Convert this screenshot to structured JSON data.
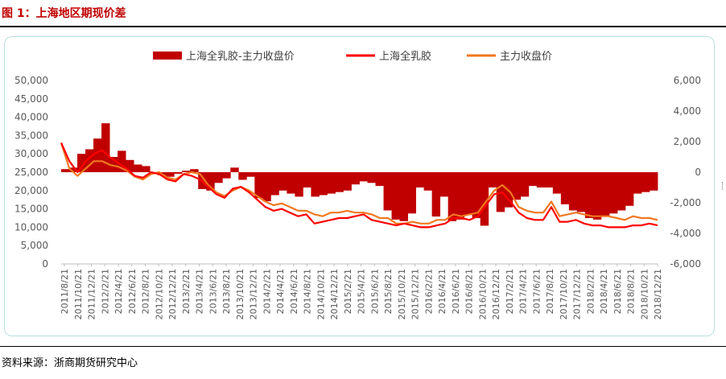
{
  "figure": {
    "title": "图 1：上海地区期现价差"
  },
  "source": {
    "text": "资料来源：浙商期货研究中心"
  },
  "chart_data": {
    "type": "bar",
    "legend": {
      "placement": "top",
      "items": [
        {
          "label": "上海全乳胶-主力收盘价",
          "kind": "bar",
          "color": "#c00000"
        },
        {
          "label": "上海全乳胶",
          "kind": "line",
          "color": "#ff0000"
        },
        {
          "label": "主力收盘价",
          "kind": "line",
          "color": "#f07820"
        }
      ]
    },
    "left_axis": {
      "ylim": [
        0,
        50000
      ],
      "ticks": [
        "0",
        "5,000",
        "10,000",
        "15,000",
        "20,000",
        "25,000",
        "30,000",
        "35,000",
        "40,000",
        "45,000",
        "50,000"
      ]
    },
    "right_axis": {
      "ylim": [
        -6000,
        6000
      ],
      "ticks": [
        "-6,000",
        "-4,000",
        "-2,000",
        "0",
        "2,000",
        "4,000",
        "6,000"
      ]
    },
    "x_tick_labels": [
      "2011/8/21",
      "2011/10/21",
      "2011/12/21",
      "2012/2/21",
      "2012/4/21",
      "2012/6/21",
      "2012/8/21",
      "2012/10/21",
      "2012/12/21",
      "2013/2/21",
      "2013/4/21",
      "2013/6/21",
      "2013/8/21",
      "2013/10/21",
      "2013/12/21",
      "2014/2/21",
      "2014/4/21",
      "2014/6/21",
      "2014/8/21",
      "2014/10/21",
      "2014/12/21",
      "2015/2/21",
      "2015/4/21",
      "2015/6/21",
      "2015/8/21",
      "2015/10/21",
      "2015/12/21",
      "2016/2/21",
      "2016/4/21",
      "2016/6/21",
      "2016/8/21",
      "2016/10/21",
      "2016/12/21",
      "2017/2/21",
      "2017/4/21",
      "2017/6/21",
      "2017/8/21",
      "2017/10/21",
      "2017/12/21",
      "2018/2/21",
      "2018/4/21",
      "2018/6/21",
      "2018/8/21",
      "2018/10/21",
      "2018/12/21"
    ],
    "series": [
      {
        "name": "上海全乳胶-主力收盘价",
        "axis": "right",
        "type": "bar",
        "values": [
          200,
          300,
          1200,
          1500,
          2200,
          3200,
          1000,
          1400,
          800,
          500,
          400,
          0,
          -200,
          -300,
          -100,
          100,
          200,
          -1100,
          -1200,
          -700,
          -400,
          300,
          -500,
          -300,
          -1700,
          -1900,
          -1500,
          -1200,
          -1400,
          -1600,
          -1000,
          -1600,
          -1500,
          -1400,
          -1300,
          -1200,
          -800,
          -600,
          -700,
          -900,
          -2500,
          -3100,
          -3200,
          -2700,
          -1000,
          -1200,
          -2900,
          -1600,
          -3200,
          -3100,
          -2800,
          -3000,
          -3500,
          -1000,
          -2600,
          -2300,
          -1800,
          -1600,
          -900,
          -1000,
          -1000,
          -1400,
          -2100,
          -2500,
          -2600,
          -3000,
          -3100,
          -2900,
          -2700,
          -2500,
          -2200,
          -1400,
          -1300,
          -1200
        ]
      },
      {
        "name": "上海全乳胶",
        "axis": "left",
        "type": "line",
        "values": [
          33000,
          28000,
          25000,
          28000,
          30000,
          31000,
          29000,
          27500,
          26000,
          24000,
          23500,
          25000,
          24500,
          23000,
          22500,
          24500,
          24000,
          23000,
          21000,
          19000,
          18000,
          20500,
          21000,
          19500,
          17500,
          15500,
          14500,
          15000,
          14000,
          13000,
          13500,
          11000,
          11500,
          12000,
          12500,
          12500,
          13000,
          13500,
          12000,
          11500,
          11000,
          10500,
          11000,
          10500,
          10000,
          10000,
          10500,
          11000,
          12500,
          12500,
          12000,
          13000,
          16000,
          19000,
          19500,
          17000,
          14000,
          12500,
          12000,
          12000,
          15500,
          11500,
          11500,
          12000,
          11000,
          10500,
          10500,
          10000,
          10000,
          10000,
          10500,
          10500,
          11000,
          10500
        ]
      },
      {
        "name": "主力收盘价",
        "axis": "left",
        "type": "line",
        "values": [
          33000,
          26000,
          24000,
          26000,
          28000,
          28000,
          27000,
          26500,
          25500,
          23800,
          23000,
          24500,
          25000,
          23500,
          23000,
          24500,
          25000,
          24500,
          21500,
          19500,
          18500,
          20000,
          21000,
          20000,
          18500,
          17000,
          16000,
          16500,
          15500,
          14500,
          14500,
          13500,
          13000,
          14000,
          14000,
          14500,
          14000,
          14000,
          13500,
          12500,
          12500,
          11000,
          11000,
          11500,
          11000,
          11000,
          12000,
          12000,
          13500,
          13000,
          13500,
          14000,
          17000,
          20000,
          21500,
          19500,
          15500,
          14500,
          14000,
          14000,
          17000,
          13000,
          13500,
          14000,
          13500,
          13000,
          13000,
          13000,
          12500,
          12000,
          13000,
          12500,
          12500,
          12000
        ]
      }
    ]
  }
}
